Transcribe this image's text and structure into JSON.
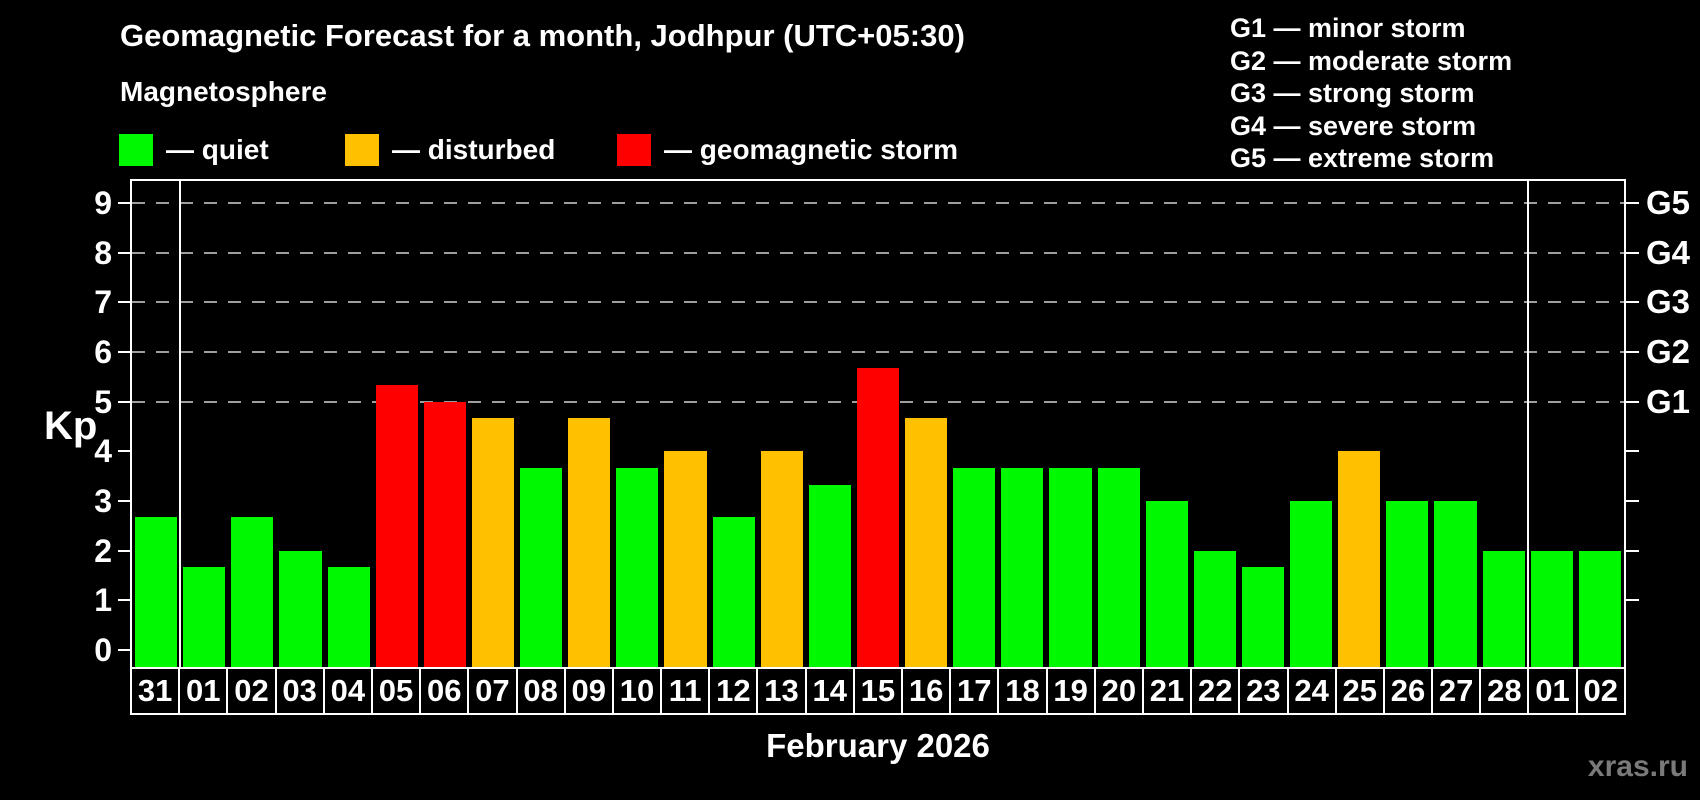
{
  "title": "Geomagnetic Forecast for a month, Jodhpur (UTC+05:30)",
  "subtitle": "Magnetosphere",
  "legend": {
    "quiet_label": "— quiet",
    "disturbed_label": "— disturbed",
    "storm_label": "— geomagnetic storm"
  },
  "g_legend": [
    "G1 — minor storm",
    "G2 — moderate storm",
    "G3 — strong storm",
    "G4 — severe storm",
    "G5 — extreme storm"
  ],
  "axis": {
    "kp_label": "Kp"
  },
  "caption": "February 2026",
  "watermark": "xras.ru",
  "colors": {
    "quiet": "#00f800",
    "disturbed": "#ffc000",
    "storm": "#ff0000",
    "grid": "#9e9e9e",
    "axis": "#ffffff",
    "watermark": "#7a7a7a"
  },
  "chart_data": {
    "type": "bar",
    "title": "Geomagnetic Forecast for a month, Jodhpur (UTC+05:30)",
    "xlabel": "February 2026",
    "ylabel": "Kp",
    "ylim": [
      0,
      9
    ],
    "grid": "dashed horizontal at Kp 5-9 only",
    "categories": [
      "31",
      "01",
      "02",
      "03",
      "04",
      "05",
      "06",
      "07",
      "08",
      "09",
      "10",
      "11",
      "12",
      "13",
      "14",
      "15",
      "16",
      "17",
      "18",
      "19",
      "20",
      "21",
      "22",
      "23",
      "24",
      "25",
      "26",
      "27",
      "28",
      "01",
      "02"
    ],
    "values": [
      2.67,
      1.67,
      2.67,
      2.0,
      1.67,
      5.33,
      5.0,
      4.67,
      3.67,
      4.67,
      3.67,
      4.0,
      2.67,
      4.0,
      3.33,
      5.67,
      4.67,
      3.67,
      3.67,
      3.67,
      3.67,
      3.0,
      2.0,
      1.67,
      3.0,
      4.0,
      3.0,
      3.0,
      2.0,
      2.0,
      2.0
    ],
    "status": [
      "quiet",
      "quiet",
      "quiet",
      "quiet",
      "quiet",
      "storm",
      "storm",
      "disturbed",
      "quiet",
      "disturbed",
      "quiet",
      "disturbed",
      "quiet",
      "disturbed",
      "quiet",
      "storm",
      "disturbed",
      "quiet",
      "quiet",
      "quiet",
      "quiet",
      "quiet",
      "quiet",
      "quiet",
      "quiet",
      "disturbed",
      "quiet",
      "quiet",
      "quiet",
      "quiet",
      "quiet"
    ],
    "yticks": [
      0,
      1,
      2,
      3,
      4,
      5,
      6,
      7,
      8,
      9
    ],
    "grid_levels": [
      5,
      6,
      7,
      8,
      9
    ],
    "g_scale": [
      {
        "kp": 5,
        "label": "G1"
      },
      {
        "kp": 6,
        "label": "G2"
      },
      {
        "kp": 7,
        "label": "G3"
      },
      {
        "kp": 8,
        "label": "G4"
      },
      {
        "kp": 9,
        "label": "G5"
      }
    ],
    "separators_after_index": [
      0,
      28
    ]
  }
}
